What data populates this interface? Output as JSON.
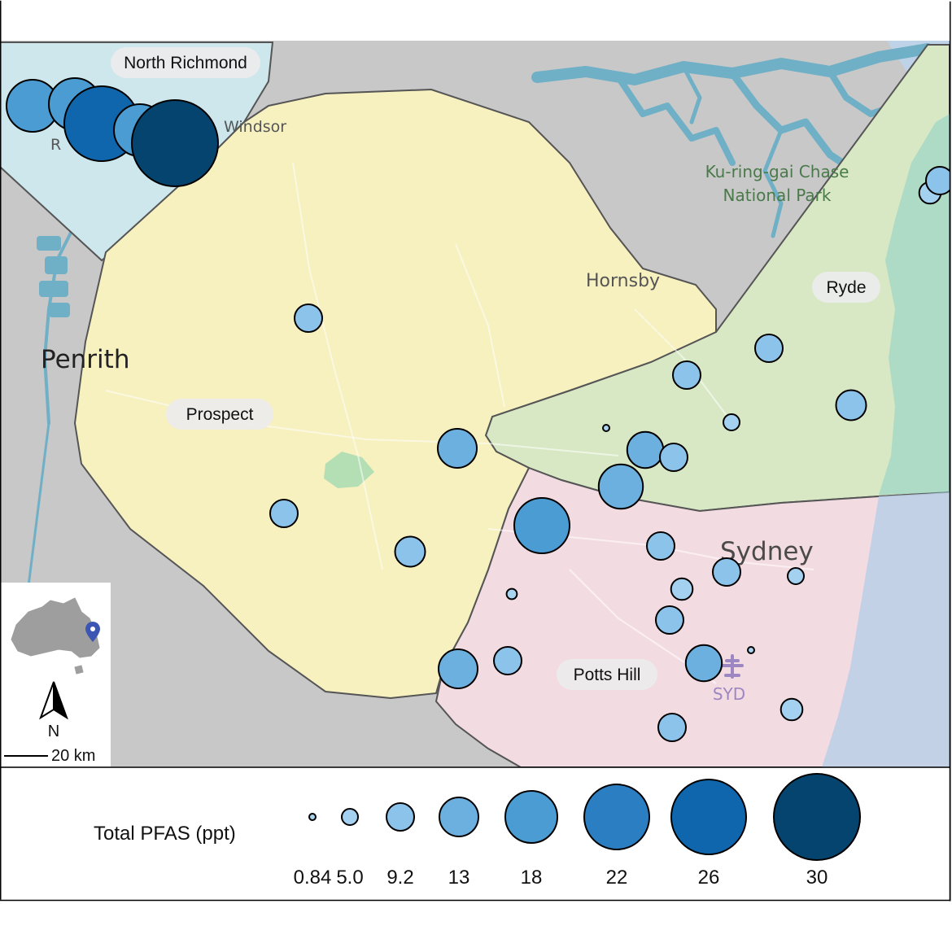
{
  "map": {
    "regions": [
      {
        "name": "North Richmond",
        "fill": "#cde7ec"
      },
      {
        "name": "Prospect",
        "fill": "#f7f0bf"
      },
      {
        "name": "Ryde",
        "fill": "#d8e8c4"
      },
      {
        "name": "Potts Hill",
        "fill": "#f3dbe2"
      }
    ],
    "places": {
      "penrith": "Penrith",
      "windsor": "Windsor",
      "hornsby": "Hornsby",
      "sydney": "Sydney",
      "kuringgai_line1": "Ku-ring-gai Chase",
      "kuringgai_line2": "National Park",
      "syd": "SYD",
      "richmond_fragment": "R"
    },
    "colors": {
      "land": "#c8c8c8",
      "water": "#6fb0c6",
      "sea_east": "#bfd3e8",
      "region_border": "#555555"
    }
  },
  "sites": [
    {
      "region": "North Richmond",
      "pfas": 18
    },
    {
      "region": "North Richmond",
      "pfas": 18
    },
    {
      "region": "North Richmond",
      "pfas": 26
    },
    {
      "region": "North Richmond",
      "pfas": 18
    },
    {
      "region": "North Richmond",
      "pfas": 30
    },
    {
      "region": "Prospect",
      "pfas": 9.2
    },
    {
      "region": "Prospect",
      "pfas": 13
    },
    {
      "region": "Prospect",
      "pfas": 9.2
    },
    {
      "region": "Prospect",
      "pfas": 10
    },
    {
      "region": "Ryde",
      "pfas": 9.2
    },
    {
      "region": "Ryde",
      "pfas": 9.2
    },
    {
      "region": "Ryde",
      "pfas": 10
    },
    {
      "region": "Ryde",
      "pfas": 5.0
    },
    {
      "region": "Ryde",
      "pfas": 0.84
    },
    {
      "region": "Ryde",
      "pfas": 12
    },
    {
      "region": "Ryde",
      "pfas": 9.2
    },
    {
      "region": "Ryde",
      "pfas": 15
    },
    {
      "region": "Ryde",
      "pfas": 7
    },
    {
      "region": "Ryde",
      "pfas": 9.2
    },
    {
      "region": "Potts Hill",
      "pfas": 19
    },
    {
      "region": "Potts Hill",
      "pfas": 9.2
    },
    {
      "region": "Potts Hill",
      "pfas": 9.2
    },
    {
      "region": "Potts Hill",
      "pfas": 7
    },
    {
      "region": "Potts Hill",
      "pfas": 5.0
    },
    {
      "region": "Potts Hill",
      "pfas": 2.5
    },
    {
      "region": "Potts Hill",
      "pfas": 9.2
    },
    {
      "region": "Potts Hill",
      "pfas": 13
    },
    {
      "region": "Potts Hill",
      "pfas": 9.2
    },
    {
      "region": "Potts Hill",
      "pfas": 12
    },
    {
      "region": "Potts Hill",
      "pfas": 0.84
    },
    {
      "region": "Potts Hill",
      "pfas": 7
    },
    {
      "region": "Potts Hill",
      "pfas": 9.2
    }
  ],
  "legend": {
    "title": "Total PFAS (ppt)",
    "entries": [
      {
        "label": "0.84",
        "color": "#a9d4f0"
      },
      {
        "label": "5.0",
        "color": "#a4d1f0"
      },
      {
        "label": "9.2",
        "color": "#8cc3eb"
      },
      {
        "label": "13",
        "color": "#6cb0e0"
      },
      {
        "label": "18",
        "color": "#4a9cd3"
      },
      {
        "label": "22",
        "color": "#2b7ec1"
      },
      {
        "label": "26",
        "color": "#0f66ad"
      },
      {
        "label": "30",
        "color": "#04446f"
      }
    ]
  },
  "inset": {
    "north_label": "N",
    "scale_label": "20 km",
    "marker_color": "#3d55b3"
  }
}
